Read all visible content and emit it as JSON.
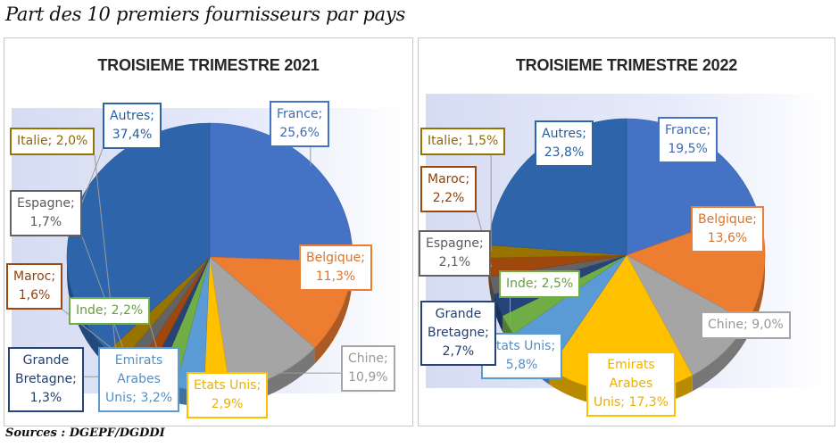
{
  "title": "Part des 10 premiers fournisseurs par pays",
  "source": "Sources : DGEPF/DGDDI",
  "chart_data": [
    {
      "type": "pie",
      "title": "TROISIEME TRIMESTRE 2021",
      "slices": [
        {
          "label": "France",
          "value": 25.6,
          "text": "France;\n25,6%",
          "color": "#4472c4"
        },
        {
          "label": "Belgique",
          "value": 11.3,
          "text": "Belgique;\n11,3%",
          "color": "#ed7d31"
        },
        {
          "label": "Chine",
          "value": 10.9,
          "text": "Chine;\n10,9%",
          "color": "#a5a5a5"
        },
        {
          "label": "Etats Unis",
          "value": 2.9,
          "text": "Etats Unis;\n2,9%",
          "color": "#ffc000"
        },
        {
          "label": "Emirats Arabes Unis",
          "value": 3.2,
          "text": "Emirats\nArabes\nUnis; 3,2%",
          "color": "#5b9bd5"
        },
        {
          "label": "Inde",
          "value": 2.2,
          "text": "Inde; 2,2%",
          "color": "#70ad47"
        },
        {
          "label": "Grande Bretagne",
          "value": 1.3,
          "text": "Grande\nBretagne;\n1,3%",
          "color": "#264478"
        },
        {
          "label": "Maroc",
          "value": 1.6,
          "text": "Maroc;\n1,6%",
          "color": "#9e480e"
        },
        {
          "label": "Espagne",
          "value": 1.7,
          "text": "Espagne;\n1,7%",
          "color": "#636363"
        },
        {
          "label": "Italie",
          "value": 2.0,
          "text": "Italie; 2,0%",
          "color": "#997300"
        },
        {
          "label": "Autres",
          "value": 37.4,
          "text": "Autres;\n37,4%",
          "color": "#2e65aa"
        }
      ]
    },
    {
      "type": "pie",
      "title": "TROISIEME TRIMESTRE 2022",
      "slices": [
        {
          "label": "France",
          "value": 19.5,
          "text": "France;\n19,5%",
          "color": "#4472c4"
        },
        {
          "label": "Belgique",
          "value": 13.6,
          "text": "Belgique;\n13,6%",
          "color": "#ed7d31"
        },
        {
          "label": "Chine",
          "value": 9.0,
          "text": "Chine; 9,0%",
          "color": "#a5a5a5"
        },
        {
          "label": "Emirats Arabes Unis",
          "value": 17.3,
          "text": "Emirats\nArabes\nUnis; 17,3%",
          "color": "#ffc000"
        },
        {
          "label": "Etats Unis",
          "value": 5.8,
          "text": "Etats Unis;\n5,8%",
          "color": "#5b9bd5"
        },
        {
          "label": "Inde",
          "value": 2.5,
          "text": "Inde; 2,5%",
          "color": "#70ad47"
        },
        {
          "label": "Grande Bretagne",
          "value": 2.7,
          "text": "Grande\nBretagne;\n2,7%",
          "color": "#264478"
        },
        {
          "label": "Espagne",
          "value": 2.1,
          "text": "Espagne;\n2,1%",
          "color": "#636363"
        },
        {
          "label": "Maroc",
          "value": 2.2,
          "text": "Maroc;\n2,2%",
          "color": "#9e480e"
        },
        {
          "label": "Italie",
          "value": 1.5,
          "text": "Italie; 1,5%",
          "color": "#997300"
        },
        {
          "label": "Autres",
          "value": 23.8,
          "text": "Autres;\n23,8%",
          "color": "#2e65aa"
        }
      ]
    }
  ]
}
